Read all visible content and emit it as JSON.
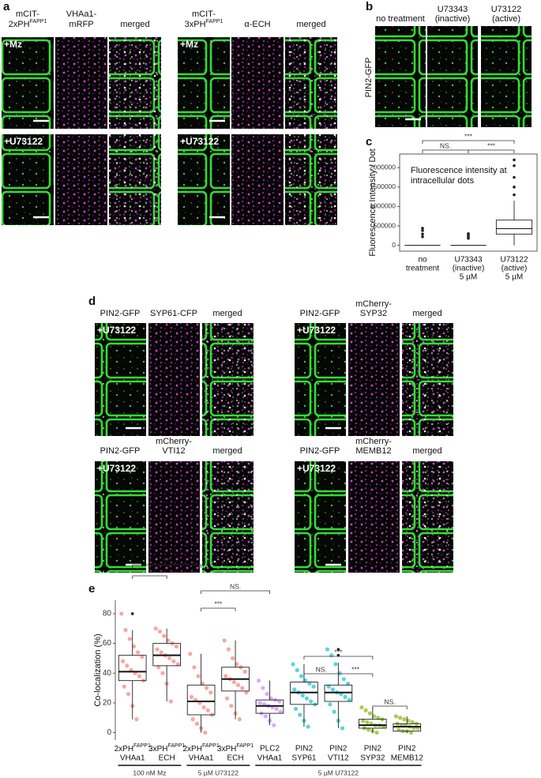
{
  "panel_labels": [
    "a",
    "b",
    "c",
    "d",
    "e"
  ],
  "panel_a": {
    "groups": [
      {
        "headers": [
          {
            "lines": [
              "mCIT-",
              {
                "text": "2xPH",
                "sup": "FAPP1"
              }
            ]
          },
          {
            "lines": [
              "VHAa1-",
              "mRFP"
            ]
          },
          {
            "lines": [
              "merged"
            ]
          }
        ],
        "treatments": [
          "+Mz",
          "+U73122"
        ]
      },
      {
        "headers": [
          {
            "lines": [
              "mCIT-",
              {
                "text": "3xPH",
                "sup": "FAPP1"
              }
            ]
          },
          {
            "lines": [
              "α-ECH"
            ]
          },
          {
            "lines": [
              "merged"
            ]
          }
        ],
        "treatments": [
          "+Mz",
          "+U73122"
        ]
      }
    ]
  },
  "panel_b": {
    "headers": [
      {
        "lines": [
          "no treatment"
        ]
      },
      {
        "lines": [
          "U73343",
          "(inactive)"
        ]
      },
      {
        "lines": [
          "U73122",
          "(active)"
        ]
      }
    ],
    "ylabel": "PIN2-GFP"
  },
  "panel_c": {
    "chart_data": {
      "type": "box",
      "ylabel": "Fluorescence Intensity / Dot",
      "annotation": [
        "Fluorescence intensity at",
        "intracellular dots"
      ],
      "categories": [
        [
          "no",
          "treatment"
        ],
        [
          "U73343",
          "(inactive)",
          "5 µM"
        ],
        [
          "U73122",
          "(active)",
          "5 µM"
        ]
      ],
      "boxes": [
        {
          "whislo": 0,
          "q1": 0,
          "med": 0,
          "q3": 0,
          "whishi": 0,
          "fliers": [
            220000,
            290000,
            380000,
            440000
          ]
        },
        {
          "whislo": 0,
          "q1": 0,
          "med": 0,
          "q3": 0,
          "whishi": 0,
          "fliers": [
            180000,
            220000,
            260000,
            300000
          ]
        },
        {
          "whislo": 0,
          "q1": 290000,
          "med": 430000,
          "q3": 650000,
          "whishi": 1150000,
          "fliers": [
            1300000,
            1500000,
            1750000,
            2050000,
            2200000
          ]
        }
      ],
      "ylim": [
        -150000,
        2350000
      ],
      "yticks": [
        0,
        500000,
        1000000,
        1500000,
        2000000
      ],
      "significance": [
        "***",
        "NS.",
        "***"
      ]
    }
  },
  "panel_d": {
    "groups": [
      {
        "headers": [
          {
            "lines": [
              "PIN2-GFP"
            ]
          },
          {
            "lines": [
              "SYP61-CFP"
            ]
          },
          {
            "lines": [
              "merged"
            ]
          }
        ],
        "treatment": "+U73122"
      },
      {
        "headers": [
          {
            "lines": [
              "PIN2-GFP"
            ]
          },
          {
            "lines": [
              "mCherry-",
              "SYP32"
            ]
          },
          {
            "lines": [
              "merged"
            ]
          }
        ],
        "treatment": "+U73122"
      },
      {
        "headers": [
          {
            "lines": [
              "PIN2-GFP"
            ]
          },
          {
            "lines": [
              "mCherry-",
              "VTI12"
            ]
          },
          {
            "lines": [
              "merged"
            ]
          }
        ],
        "treatment": "+U73122"
      },
      {
        "headers": [
          {
            "lines": [
              "PIN2-GFP"
            ]
          },
          {
            "lines": [
              "mCherry-",
              "MEMB12"
            ]
          },
          {
            "lines": [
              "merged"
            ]
          }
        ],
        "treatment": "+U73122"
      }
    ]
  },
  "panel_e": {
    "chart_data": {
      "type": "box-jitter",
      "ylabel": "Co-localization (%)",
      "categories": [
        {
          "lines": [
            {
              "text": "2xPH",
              "sup": "FAPP1"
            },
            "VHAa1"
          ]
        },
        {
          "lines": [
            {
              "text": "3xPH",
              "sup": "FAPP1"
            },
            "ECH"
          ]
        },
        {
          "lines": [
            {
              "text": "2xPH",
              "sup": "FAPP1"
            },
            "VHAa1"
          ]
        },
        {
          "lines": [
            {
              "text": "3xPH",
              "sup": "FAPP1"
            },
            "ECH"
          ]
        },
        {
          "lines": [
            "PLC2",
            "VHAa1"
          ]
        },
        {
          "lines": [
            "PIN2",
            "SYP61"
          ]
        },
        {
          "lines": [
            "PIN2",
            "VTI12"
          ]
        },
        {
          "lines": [
            "PIN2",
            "SYP32"
          ]
        },
        {
          "lines": [
            "PIN2",
            "MEMB12"
          ]
        }
      ],
      "colors": [
        "#f8766d",
        "#f8766d",
        "#f8766d",
        "#f8766d",
        "#c77cff",
        "#00bfc4",
        "#00bfc4",
        "#7cae00",
        "#7cae00"
      ],
      "boxes": [
        {
          "whislo": 9,
          "q1": 35,
          "med": 41,
          "q3": 52,
          "whishi": 69,
          "fliers": [
            80
          ]
        },
        {
          "whislo": 21,
          "q1": 45,
          "med": 52,
          "q3": 60,
          "whishi": 70,
          "fliers": []
        },
        {
          "whislo": 0,
          "q1": 12,
          "med": 21,
          "q3": 32,
          "whishi": 53,
          "fliers": []
        },
        {
          "whislo": 9,
          "q1": 28,
          "med": 36,
          "q3": 44,
          "whishi": 62,
          "fliers": []
        },
        {
          "whislo": 5,
          "q1": 13,
          "med": 18,
          "q3": 22,
          "whishi": 35,
          "fliers": []
        },
        {
          "whislo": 4,
          "q1": 19,
          "med": 27,
          "q3": 34,
          "whishi": 46,
          "fliers": []
        },
        {
          "whislo": 3,
          "q1": 21,
          "med": 27,
          "q3": 32,
          "whishi": 47,
          "fliers": [
            52,
            56
          ]
        },
        {
          "whislo": 0,
          "q1": 3,
          "med": 5,
          "q3": 9,
          "whishi": 17,
          "fliers": []
        },
        {
          "whislo": 0,
          "q1": 1,
          "med": 4,
          "q3": 6,
          "whishi": 11,
          "fliers": []
        }
      ],
      "points": [
        [
          80,
          69,
          63,
          58,
          54,
          51,
          48,
          45,
          42,
          40,
          38,
          35,
          31,
          26,
          18,
          9
        ],
        [
          70,
          68,
          65,
          62,
          60,
          58,
          56,
          54,
          52,
          50,
          48,
          46,
          44,
          40,
          33,
          21
        ],
        [
          53,
          44,
          38,
          33,
          30,
          27,
          24,
          22,
          20,
          17,
          15,
          12,
          9,
          6,
          3,
          0
        ],
        [
          62,
          56,
          50,
          46,
          44,
          41,
          38,
          36,
          34,
          32,
          30,
          27,
          23,
          18,
          13,
          9
        ],
        [
          35,
          30,
          26,
          23,
          22,
          21,
          20,
          19,
          18,
          17,
          16,
          14,
          13,
          11,
          8,
          5
        ],
        [
          46,
          42,
          38,
          35,
          33,
          31,
          29,
          27,
          25,
          23,
          21,
          19,
          16,
          12,
          8,
          4
        ],
        [
          56,
          52,
          46,
          40,
          36,
          33,
          31,
          29,
          27,
          26,
          24,
          22,
          19,
          14,
          8,
          3
        ],
        [
          17,
          15,
          13,
          11,
          10,
          9,
          8,
          7,
          6,
          5,
          5,
          4,
          3,
          2,
          1,
          0
        ],
        [
          11,
          10,
          9,
          8,
          7,
          6,
          6,
          5,
          5,
          4,
          3,
          3,
          2,
          1,
          1,
          0
        ]
      ],
      "ylim": [
        -5,
        89
      ],
      "yticks": [
        0,
        20,
        40,
        60,
        80
      ],
      "significance": [
        "***",
        "*",
        "NS.",
        "***",
        "***",
        "NS.",
        "***",
        "NS."
      ],
      "groups": [
        "100 nM Mz",
        "5 µM U73122",
        "5 µM U73122"
      ]
    }
  }
}
